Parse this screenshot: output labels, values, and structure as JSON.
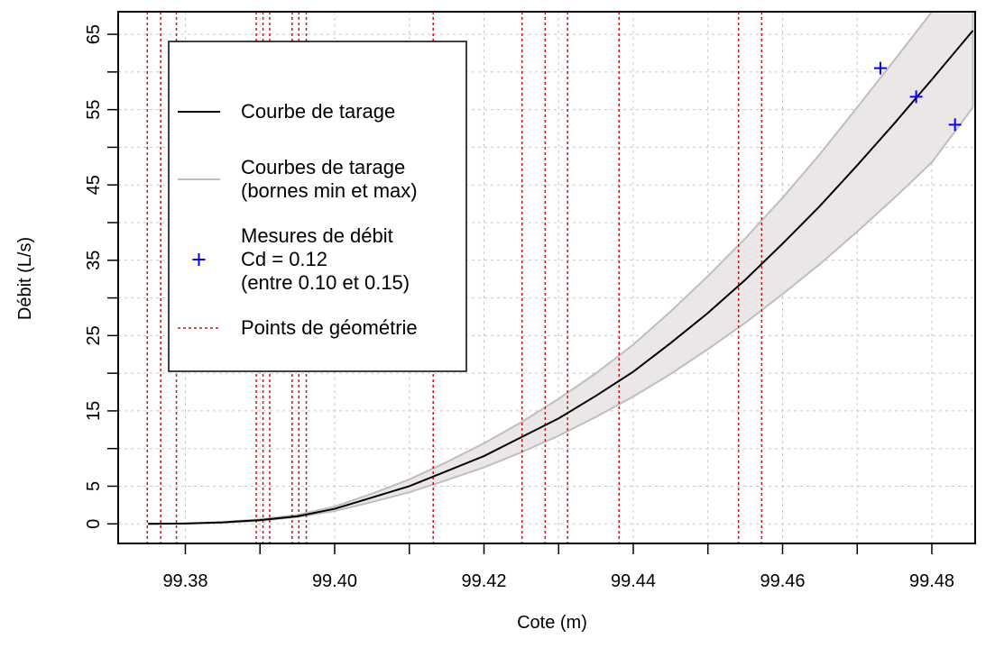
{
  "chart_data": {
    "type": "line",
    "title": "",
    "xlabel": "Cote (m)",
    "ylabel": "Débit (L/s)",
    "xlim": [
      99.371,
      99.4858
    ],
    "ylim": [
      -2.6,
      68
    ],
    "x_ticks": [
      99.38,
      99.4,
      99.42,
      99.44,
      99.46,
      99.48
    ],
    "x_tick_labels": [
      "99.38",
      "99.40",
      "99.42",
      "99.44",
      "99.46",
      "99.48"
    ],
    "x_minor_ticks": [
      99.37,
      99.39,
      99.41,
      99.43,
      99.45,
      99.47
    ],
    "y_ticks": [
      0,
      5,
      15,
      25,
      35,
      45,
      55,
      65
    ],
    "y_tick_labels": [
      "0",
      "5",
      "15",
      "25",
      "35",
      "45",
      "55",
      "65"
    ],
    "y_minor_ticks": [
      10,
      20,
      30,
      40,
      50,
      60
    ],
    "grid": true,
    "colors": {
      "rating_curve": "#000000",
      "bounds": "#bebebe",
      "band_fill": "#ebe7e7",
      "measures": "#0000ff",
      "geometry": "#ff0000",
      "grid": "#c8c8c8"
    },
    "series": [
      {
        "name": "Courbe de tarage",
        "kind": "line",
        "x": [
          99.375,
          99.38,
          99.385,
          99.39,
          99.395,
          99.4,
          99.405,
          99.41,
          99.415,
          99.42,
          99.425,
          99.43,
          99.435,
          99.44,
          99.445,
          99.45,
          99.455,
          99.46,
          99.465,
          99.47,
          99.475,
          99.48,
          99.4855
        ],
        "y": [
          0,
          0.05,
          0.2,
          0.5,
          1.0,
          2.0,
          3.5,
          5.0,
          7.0,
          9.0,
          11.5,
          14.0,
          17.0,
          20.2,
          24.0,
          28.0,
          32.4,
          37.2,
          42.2,
          47.6,
          53.2,
          59.0,
          65.5
        ]
      },
      {
        "name": "Courbes de tarage",
        "kind": "band",
        "x": [
          99.375,
          99.38,
          99.385,
          99.39,
          99.395,
          99.4,
          99.405,
          99.41,
          99.415,
          99.42,
          99.425,
          99.43,
          99.435,
          99.44,
          99.445,
          99.45,
          99.455,
          99.46,
          99.465,
          99.47,
          99.475,
          99.48,
          99.4855
        ],
        "y_min": [
          0,
          0.05,
          0.15,
          0.4,
          0.9,
          1.7,
          2.9,
          4.2,
          5.8,
          7.5,
          9.5,
          11.7,
          14.2,
          16.9,
          19.9,
          23.2,
          26.7,
          30.5,
          34.5,
          38.8,
          43.3,
          48.0,
          55.3
        ],
        "y_max": [
          0,
          0.05,
          0.25,
          0.6,
          1.2,
          2.3,
          4.0,
          5.9,
          8.2,
          10.7,
          13.5,
          16.6,
          20.0,
          23.8,
          28.2,
          32.9,
          37.9,
          43.3,
          49.1,
          55.3,
          61.6,
          68.0,
          68.0
        ]
      },
      {
        "name": "Mesures de débit",
        "kind": "scatter",
        "marker": "+",
        "x": [
          99.4731,
          99.4779,
          99.4831
        ],
        "y": [
          60.5,
          56.7,
          53.0
        ]
      },
      {
        "name": "Points de géométrie",
        "kind": "vlines",
        "x": [
          99.3749,
          99.3767,
          99.3788,
          99.3895,
          99.3904,
          99.3913,
          99.3943,
          99.3952,
          99.3962,
          99.4132,
          99.4251,
          99.4282,
          99.4312,
          99.4381,
          99.4541,
          99.4572
        ]
      }
    ],
    "legend": {
      "position": "top-left",
      "entries": [
        {
          "key": "rating_curve",
          "lines": [
            "Courbe de tarage"
          ]
        },
        {
          "key": "bounds",
          "lines": [
            "Courbes de tarage",
            "(bornes min et max)"
          ]
        },
        {
          "key": "measures",
          "lines": [
            "Mesures de débit",
            "Cd = 0.12",
            "(entre 0.10 et 0.15)"
          ]
        },
        {
          "key": "geometry",
          "lines": [
            "Points de géométrie"
          ]
        }
      ]
    }
  }
}
